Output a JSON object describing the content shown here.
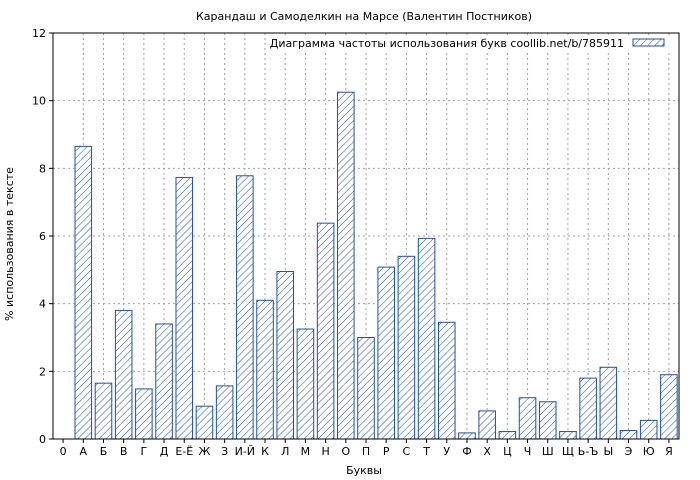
{
  "chart_data": {
    "type": "bar",
    "title": "Карандаш и Самоделкин на Марсе (Валентин Постников)",
    "xlabel": "Буквы",
    "ylabel": "% использования в тексте",
    "ylim": [
      0,
      12
    ],
    "yticks": [
      "0",
      "2",
      "4",
      "6",
      "8",
      "10",
      "12"
    ],
    "grid": true,
    "legend": {
      "position": "top-right",
      "label": "Диаграмма частоты использования букв coollib.net/b/785911"
    },
    "colors": {
      "bar_edge": "#1f4fa8",
      "hatch": "#1f4fa8"
    },
    "categories": [
      "0",
      "А",
      "Б",
      "В",
      "Г",
      "Д",
      "Е-Ё",
      "Ж",
      "З",
      "И-Й",
      "К",
      "Л",
      "М",
      "Н",
      "О",
      "П",
      "Р",
      "С",
      "Т",
      "У",
      "Ф",
      "Х",
      "Ц",
      "Ч",
      "Ш",
      "Щ",
      "Ь-Ъ",
      "Ы",
      "Э",
      "Ю",
      "Я"
    ],
    "values": [
      0,
      8.65,
      1.65,
      3.8,
      1.48,
      3.4,
      7.73,
      0.97,
      1.57,
      7.78,
      4.1,
      4.95,
      3.25,
      6.38,
      10.25,
      3.0,
      5.08,
      5.4,
      5.93,
      3.45,
      0.18,
      0.83,
      0.22,
      1.22,
      1.1,
      0.22,
      1.8,
      2.12,
      0.25,
      0.55,
      1.9
    ]
  }
}
